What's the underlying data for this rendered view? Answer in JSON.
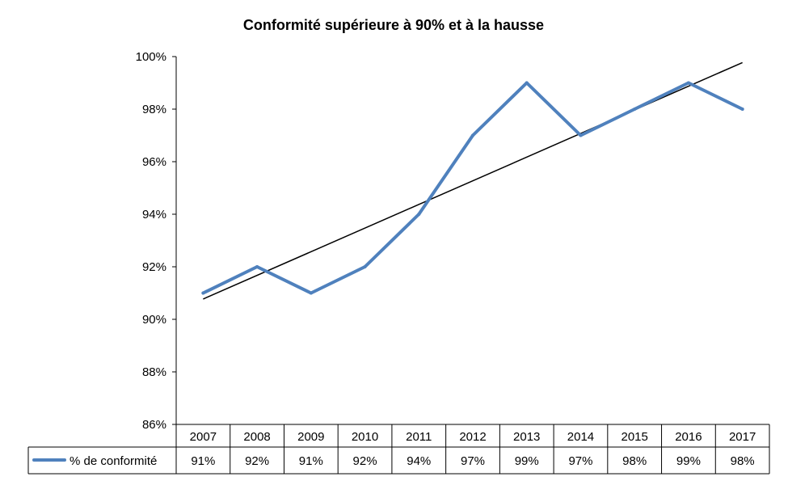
{
  "chart_data": {
    "type": "line",
    "title": "Conformité supérieure à 90% et à la hausse",
    "categories": [
      "2007",
      "2008",
      "2009",
      "2010",
      "2011",
      "2012",
      "2013",
      "2014",
      "2015",
      "2016",
      "2017"
    ],
    "series": [
      {
        "name": "% de conformité",
        "values": [
          91,
          92,
          91,
          92,
          94,
          97,
          99,
          97,
          98,
          99,
          98
        ],
        "color": "#4F81BD"
      }
    ],
    "trendline": {
      "type": "linear",
      "color": "#000000"
    },
    "ylim": [
      86,
      100
    ],
    "yticks": [
      "86%",
      "88%",
      "90%",
      "92%",
      "94%",
      "96%",
      "98%",
      "100%"
    ],
    "value_labels": [
      "91%",
      "92%",
      "91%",
      "92%",
      "94%",
      "97%",
      "99%",
      "97%",
      "98%",
      "99%",
      "98%"
    ],
    "data_table": true,
    "grid": false
  }
}
